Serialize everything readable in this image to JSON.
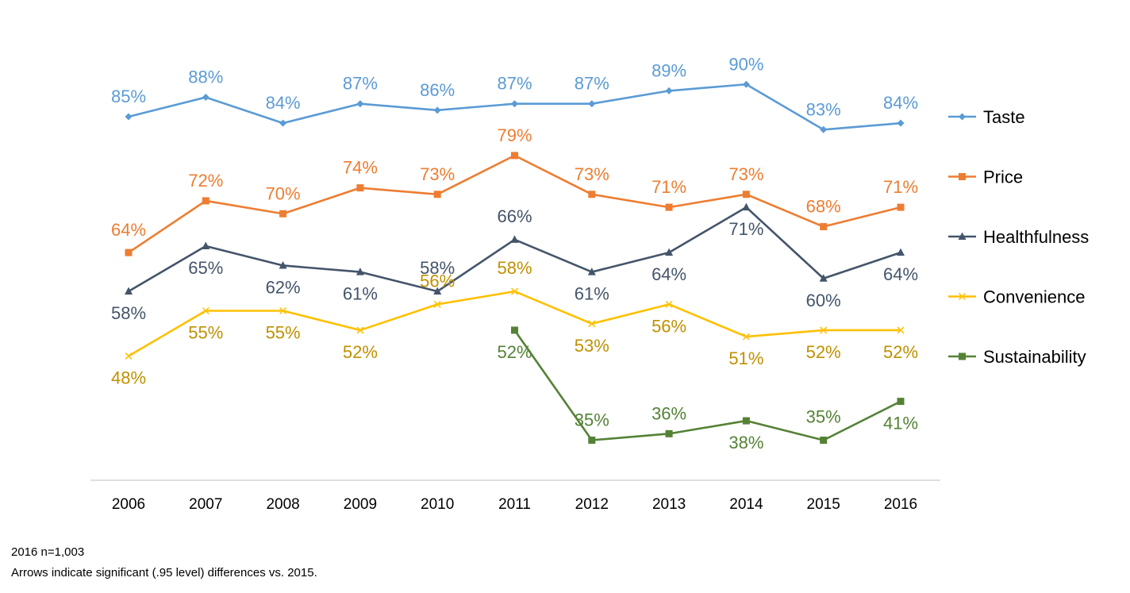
{
  "chart_data": {
    "type": "line",
    "x": [
      "2006",
      "2007",
      "2008",
      "2009",
      "2010",
      "2011",
      "2012",
      "2013",
      "2014",
      "2015",
      "2016"
    ],
    "ylim": [
      20,
      100
    ],
    "grid": false,
    "legend_position": "right",
    "series": [
      {
        "name": "Taste",
        "color": "#5b9bd5",
        "marker": "diamond",
        "label_color": "#5b9bd5",
        "values": [
          85,
          88,
          84,
          87,
          86,
          87,
          87,
          89,
          90,
          83,
          84
        ],
        "labels": [
          "85%",
          "88%",
          "84%",
          "87%",
          "86%",
          "87%",
          "87%",
          "89%",
          "90%",
          "83%",
          "84%"
        ]
      },
      {
        "name": "Price",
        "color": "#ed7d31",
        "marker": "square",
        "label_color": "#ed7d31",
        "values": [
          64,
          72,
          70,
          74,
          73,
          79,
          73,
          71,
          73,
          68,
          71
        ],
        "labels": [
          "64%",
          "72%",
          "70%",
          "74%",
          "73%",
          "79%",
          "73%",
          "71%",
          "73%",
          "68%",
          "71%"
        ]
      },
      {
        "name": "Healthfulness",
        "color": "#44546a",
        "marker": "triangle",
        "label_color": "#44546a",
        "values": [
          58,
          65,
          62,
          61,
          58,
          66,
          61,
          64,
          71,
          60,
          64
        ],
        "labels": [
          "58%",
          "65%",
          "62%",
          "61%",
          "58%",
          "66%",
          "61%",
          "64%",
          "71%",
          "60%",
          "64%"
        ]
      },
      {
        "name": "Convenience",
        "color": "#ffc000",
        "marker": "x",
        "label_color": "#bf9000",
        "values": [
          48,
          55,
          55,
          52,
          56,
          58,
          53,
          56,
          51,
          52,
          52
        ],
        "labels": [
          "48%",
          "55%",
          "55%",
          "52%",
          "56%",
          "58%",
          "53%",
          "56%",
          "51%",
          "52%",
          "52%"
        ]
      },
      {
        "name": "Sustainability",
        "color": "#548235",
        "marker": "square",
        "label_color": "#548235",
        "values": [
          null,
          null,
          null,
          null,
          null,
          52,
          35,
          36,
          38,
          35,
          41
        ],
        "labels": [
          null,
          null,
          null,
          null,
          null,
          "52%",
          "35%",
          "36%",
          "38%",
          "35%",
          "41%"
        ]
      }
    ]
  },
  "notes": {
    "sample": "2016 n=1,003",
    "arrows": "Arrows indicate significant (.95 level) differences vs. 2015."
  }
}
